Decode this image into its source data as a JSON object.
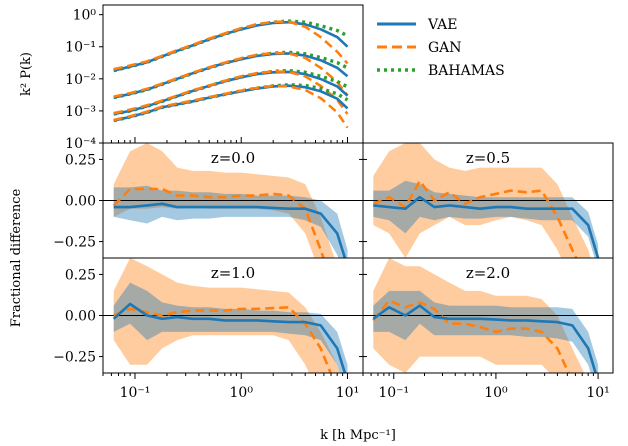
{
  "colors": {
    "vae": "#1f77b4",
    "gan": "#ff7f0e",
    "bahamas": "#2ca02c",
    "vae_band": "#1f77b4",
    "gan_band": "#ff7f0e"
  },
  "legend": {
    "placement": "right of top panel",
    "entries": [
      {
        "key": "vae",
        "label": "VAE",
        "style": "solid"
      },
      {
        "key": "gan",
        "label": "GAN",
        "style": "dashed"
      },
      {
        "key": "bahamas",
        "label": "BAHAMAS",
        "style": "dotted"
      }
    ]
  },
  "shared_xlabel": "k [h Mpc⁻¹]",
  "x_tick_labels": [
    "10⁻¹",
    "10⁰",
    "10¹"
  ],
  "chart_data": [
    {
      "type": "line",
      "panel": "power-spectrum",
      "ylabel": "k² P(k)",
      "xscale": "log",
      "yscale": "log",
      "xlim": [
        0.05,
        14
      ],
      "ylim": [
        0.0001,
        2
      ],
      "y_tick_values": [
        1,
        0.1,
        0.01,
        0.001,
        0.0001
      ],
      "y_tick_labels": [
        "10⁰",
        "10⁻¹",
        "10⁻²",
        "10⁻³",
        "10⁻⁴"
      ],
      "x": [
        0.063,
        0.09,
        0.13,
        0.18,
        0.25,
        0.35,
        0.5,
        0.7,
        1.0,
        1.4,
        2.0,
        2.8,
        4.0,
        5.6,
        8.0,
        10.0
      ],
      "groups": [
        {
          "bahamas": [
            0.018,
            0.024,
            0.033,
            0.05,
            0.075,
            0.11,
            0.17,
            0.25,
            0.36,
            0.48,
            0.58,
            0.63,
            0.58,
            0.45,
            0.32,
            0.22
          ],
          "vae": [
            0.018,
            0.024,
            0.033,
            0.05,
            0.075,
            0.11,
            0.17,
            0.25,
            0.35,
            0.46,
            0.55,
            0.58,
            0.5,
            0.35,
            0.2,
            0.1
          ],
          "gan": [
            0.02,
            0.026,
            0.035,
            0.052,
            0.078,
            0.115,
            0.18,
            0.26,
            0.38,
            0.5,
            0.6,
            0.6,
            0.42,
            0.2,
            0.07,
            0.03
          ]
        },
        {
          "bahamas": [
            0.0026,
            0.0034,
            0.0046,
            0.0068,
            0.01,
            0.015,
            0.022,
            0.031,
            0.042,
            0.054,
            0.063,
            0.067,
            0.06,
            0.046,
            0.032,
            0.022
          ],
          "vae": [
            0.0026,
            0.0034,
            0.0046,
            0.0068,
            0.01,
            0.015,
            0.022,
            0.031,
            0.041,
            0.052,
            0.06,
            0.062,
            0.053,
            0.038,
            0.022,
            0.012
          ],
          "gan": [
            0.0028,
            0.0036,
            0.0049,
            0.0071,
            0.0104,
            0.0155,
            0.023,
            0.032,
            0.044,
            0.056,
            0.064,
            0.062,
            0.045,
            0.022,
            0.008,
            0.003
          ]
        },
        {
          "bahamas": [
            0.0008,
            0.001,
            0.0014,
            0.002,
            0.0029,
            0.0042,
            0.006,
            0.0085,
            0.0115,
            0.0145,
            0.017,
            0.018,
            0.016,
            0.012,
            0.0083,
            0.0056
          ],
          "vae": [
            0.0008,
            0.001,
            0.0014,
            0.002,
            0.0029,
            0.0042,
            0.006,
            0.0084,
            0.0112,
            0.014,
            0.016,
            0.0165,
            0.014,
            0.0099,
            0.0058,
            0.003
          ],
          "gan": [
            0.00085,
            0.0011,
            0.0015,
            0.0021,
            0.003,
            0.0044,
            0.0062,
            0.0087,
            0.012,
            0.015,
            0.0172,
            0.0165,
            0.012,
            0.006,
            0.0022,
            0.0008
          ]
        },
        {
          "bahamas": [
            0.0005,
            0.00065,
            0.0009,
            0.0013,
            0.0016,
            0.002,
            0.0026,
            0.0033,
            0.0042,
            0.0051,
            0.006,
            0.0065,
            0.0062,
            0.005,
            0.0034,
            0.0022
          ],
          "vae": [
            0.0005,
            0.00065,
            0.0009,
            0.0013,
            0.0016,
            0.002,
            0.0026,
            0.0033,
            0.0041,
            0.005,
            0.0058,
            0.0061,
            0.0055,
            0.0041,
            0.0024,
            0.0012
          ],
          "gan": [
            0.00052,
            0.00068,
            0.00095,
            0.00135,
            0.0017,
            0.0021,
            0.0027,
            0.0034,
            0.0043,
            0.0052,
            0.006,
            0.0058,
            0.0045,
            0.0025,
            0.0009,
            0.0003
          ]
        }
      ]
    },
    {
      "type": "line",
      "panel": "fractional-difference",
      "ylabel": "Fractional difference",
      "xscale": "log",
      "xlim": [
        0.05,
        14
      ],
      "ylim": [
        -0.35,
        0.35
      ],
      "y_tick_values": [
        0.25,
        0.0,
        -0.25
      ],
      "y_tick_labels": [
        "0.25",
        "0.00",
        "−0.25"
      ],
      "subplots": [
        {
          "z_label": "z=0.0",
          "x": [
            0.063,
            0.09,
            0.13,
            0.18,
            0.25,
            0.35,
            0.5,
            0.7,
            1.0,
            1.4,
            2.0,
            2.8,
            4.0,
            5.6,
            8.0,
            10.0
          ],
          "vae": [
            -0.04,
            -0.04,
            -0.03,
            -0.02,
            -0.04,
            -0.04,
            -0.04,
            -0.04,
            -0.04,
            -0.04,
            -0.045,
            -0.05,
            -0.05,
            -0.08,
            -0.2,
            -0.4
          ],
          "vae_lo": [
            -0.1,
            -0.12,
            -0.14,
            -0.1,
            -0.12,
            -0.11,
            -0.11,
            -0.1,
            -0.1,
            -0.1,
            -0.1,
            -0.1,
            -0.12,
            -0.16,
            -0.33,
            -0.5
          ],
          "vae_hi": [
            0.08,
            0.08,
            0.09,
            0.06,
            0.06,
            0.05,
            0.05,
            0.04,
            0.04,
            0.03,
            0.03,
            0.03,
            0.02,
            0.0,
            -0.08,
            -0.3
          ],
          "gan": [
            -0.03,
            0.07,
            0.07,
            0.07,
            0.03,
            0.03,
            0.02,
            0.02,
            0.03,
            0.03,
            0.04,
            0.03,
            -0.05,
            -0.3,
            -0.6,
            -0.8
          ],
          "gan_lo": [
            -0.1,
            -0.05,
            -0.05,
            -0.04,
            -0.05,
            -0.04,
            -0.05,
            -0.05,
            -0.05,
            -0.05,
            -0.06,
            -0.08,
            -0.2,
            -0.45,
            -0.7,
            -0.9
          ],
          "gan_hi": [
            0.1,
            0.3,
            0.35,
            0.3,
            0.2,
            0.18,
            0.18,
            0.17,
            0.17,
            0.16,
            0.15,
            0.14,
            0.1,
            -0.1,
            -0.4,
            -0.6
          ]
        },
        {
          "z_label": "z=0.5",
          "x": [
            0.063,
            0.09,
            0.13,
            0.18,
            0.25,
            0.35,
            0.5,
            0.7,
            1.0,
            1.4,
            2.0,
            2.8,
            4.0,
            5.6,
            8.0,
            10.0
          ],
          "vae": [
            -0.03,
            -0.04,
            -0.05,
            0.02,
            -0.04,
            -0.03,
            -0.04,
            -0.05,
            -0.04,
            -0.04,
            -0.05,
            -0.05,
            -0.05,
            -0.05,
            -0.15,
            -0.35
          ],
          "vae_lo": [
            -0.1,
            -0.12,
            -0.2,
            -0.1,
            -0.12,
            -0.1,
            -0.11,
            -0.11,
            -0.1,
            -0.1,
            -0.11,
            -0.12,
            -0.12,
            -0.12,
            -0.22,
            -0.42
          ],
          "vae_hi": [
            0.06,
            0.06,
            0.12,
            0.1,
            0.05,
            0.04,
            0.03,
            0.02,
            0.02,
            0.02,
            0.02,
            0.02,
            0.02,
            0.02,
            -0.07,
            -0.27
          ],
          "gan": [
            -0.02,
            0.02,
            -0.04,
            0.12,
            0.0,
            0.05,
            -0.02,
            0.02,
            0.04,
            0.06,
            0.05,
            0.06,
            -0.1,
            -0.3,
            -0.5,
            -0.7
          ],
          "gan_lo": [
            -0.15,
            -0.2,
            -0.35,
            -0.2,
            -0.15,
            -0.1,
            -0.15,
            -0.15,
            -0.12,
            -0.1,
            -0.12,
            -0.15,
            -0.3,
            -0.5,
            -0.7,
            -0.9
          ],
          "gan_hi": [
            0.15,
            0.3,
            0.35,
            0.35,
            0.25,
            0.2,
            0.18,
            0.2,
            0.2,
            0.2,
            0.2,
            0.2,
            0.1,
            -0.1,
            -0.3,
            -0.5
          ]
        },
        {
          "z_label": "z=1.0",
          "x": [
            0.063,
            0.09,
            0.13,
            0.18,
            0.25,
            0.35,
            0.5,
            0.7,
            1.0,
            1.4,
            2.0,
            2.8,
            4.0,
            5.6,
            8.0,
            10.0
          ],
          "vae": [
            -0.02,
            0.07,
            0.0,
            -0.02,
            -0.01,
            -0.02,
            -0.02,
            -0.03,
            -0.03,
            -0.03,
            -0.035,
            -0.04,
            -0.04,
            -0.06,
            -0.2,
            -0.4
          ],
          "vae_lo": [
            -0.1,
            -0.05,
            -0.15,
            -0.1,
            -0.1,
            -0.1,
            -0.1,
            -0.1,
            -0.1,
            -0.1,
            -0.1,
            -0.11,
            -0.12,
            -0.15,
            -0.3,
            -0.5
          ],
          "vae_hi": [
            0.06,
            0.2,
            0.15,
            0.08,
            0.06,
            0.05,
            0.05,
            0.04,
            0.04,
            0.03,
            0.03,
            0.02,
            0.02,
            0.01,
            -0.1,
            -0.3
          ],
          "gan": [
            0.0,
            0.04,
            0.02,
            0.0,
            0.02,
            0.03,
            0.03,
            0.03,
            0.04,
            0.04,
            0.045,
            0.05,
            -0.05,
            -0.2,
            -0.45,
            -0.65
          ],
          "gan_lo": [
            -0.15,
            -0.3,
            -0.3,
            -0.2,
            -0.15,
            -0.12,
            -0.12,
            -0.12,
            -0.12,
            -0.12,
            -0.12,
            -0.15,
            -0.3,
            -0.5,
            -0.7,
            -0.9
          ],
          "gan_hi": [
            0.15,
            0.35,
            0.3,
            0.25,
            0.2,
            0.18,
            0.17,
            0.17,
            0.17,
            0.16,
            0.15,
            0.14,
            0.05,
            -0.1,
            -0.3,
            -0.5
          ]
        },
        {
          "z_label": "z=2.0",
          "x": [
            0.063,
            0.09,
            0.13,
            0.18,
            0.25,
            0.35,
            0.5,
            0.7,
            1.0,
            1.4,
            2.0,
            2.8,
            4.0,
            5.6,
            8.0,
            10.0
          ],
          "vae": [
            -0.02,
            0.05,
            0.0,
            0.06,
            -0.01,
            -0.02,
            -0.02,
            -0.02,
            -0.025,
            -0.03,
            -0.03,
            -0.035,
            -0.04,
            -0.06,
            -0.2,
            -0.4
          ],
          "vae_lo": [
            -0.1,
            -0.1,
            -0.15,
            -0.05,
            -0.12,
            -0.12,
            -0.12,
            -0.12,
            -0.12,
            -0.12,
            -0.13,
            -0.13,
            -0.14,
            -0.16,
            -0.3,
            -0.5
          ],
          "vae_hi": [
            0.06,
            0.15,
            0.15,
            0.15,
            0.08,
            0.06,
            0.06,
            0.06,
            0.06,
            0.05,
            0.05,
            0.05,
            0.05,
            0.04,
            -0.1,
            -0.3
          ],
          "gan": [
            -0.03,
            0.09,
            0.05,
            0.08,
            0.04,
            -0.05,
            -0.05,
            -0.07,
            -0.1,
            -0.08,
            -0.08,
            -0.1,
            -0.2,
            -0.4,
            -0.6,
            -0.8
          ],
          "gan_lo": [
            -0.2,
            -0.3,
            -0.35,
            -0.25,
            -0.25,
            -0.25,
            -0.25,
            -0.25,
            -0.3,
            -0.3,
            -0.3,
            -0.3,
            -0.4,
            -0.55,
            -0.75,
            -0.9
          ],
          "gan_hi": [
            0.15,
            0.35,
            0.3,
            0.3,
            0.25,
            0.2,
            0.15,
            0.15,
            0.12,
            0.12,
            0.12,
            0.1,
            0.0,
            -0.2,
            -0.4,
            -0.6
          ]
        }
      ]
    }
  ]
}
